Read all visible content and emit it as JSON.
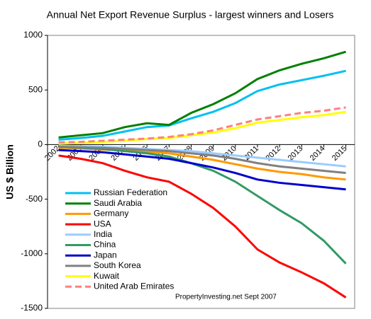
{
  "chart_data": {
    "type": "line",
    "title": "Annual Net Export Revenue Surplus -  largest winners and Losers",
    "y_label": "US $ Billion",
    "annotation": "PropertyInvesting.net     Sept 2007",
    "x": [
      2002,
      2003,
      2004,
      2005,
      2006,
      2007,
      2008,
      2009,
      2010,
      2011,
      2012,
      2013,
      2014,
      2015
    ],
    "xlim": [
      2001.5,
      2015.4
    ],
    "xticks": [
      2002,
      2003,
      2004,
      2005,
      2006,
      2007,
      2008,
      2009,
      2010,
      2011,
      2012,
      2013,
      2014,
      2015
    ],
    "ylim": [
      -1500,
      1000
    ],
    "yticks": [
      -1500,
      -1000,
      -500,
      0,
      500,
      1000
    ],
    "series": [
      {
        "name": "Russian Federation",
        "color": "#00c0f0",
        "values": [
          45,
          60,
          80,
          120,
          160,
          175,
          240,
          300,
          380,
          490,
          550,
          590,
          630,
          675
        ]
      },
      {
        "name": "Saudi Arabia",
        "color": "#008000",
        "values": [
          65,
          85,
          105,
          160,
          195,
          180,
          290,
          370,
          470,
          600,
          680,
          740,
          790,
          850
        ]
      },
      {
        "name": "Germany",
        "color": "#ff9900",
        "values": [
          -30,
          -35,
          -45,
          -55,
          -65,
          -80,
          -110,
          -140,
          -180,
          -220,
          -250,
          -270,
          -300,
          -320
        ]
      },
      {
        "name": "USA",
        "color": "#ff0000",
        "values": [
          -100,
          -130,
          -170,
          -240,
          -300,
          -340,
          -450,
          -580,
          -750,
          -960,
          -1080,
          -1170,
          -1270,
          -1400
        ]
      },
      {
        "name": "India",
        "color": "#99ccff",
        "values": [
          -10,
          -15,
          -20,
          -30,
          -40,
          -50,
          -60,
          -80,
          -100,
          -120,
          -140,
          -160,
          -180,
          -200
        ]
      },
      {
        "name": "China",
        "color": "#339966",
        "values": [
          -20,
          -30,
          -40,
          -60,
          -80,
          -110,
          -170,
          -240,
          -340,
          -470,
          -600,
          -720,
          -880,
          -1090
        ]
      },
      {
        "name": "Japan",
        "color": "#0000cc",
        "values": [
          -50,
          -60,
          -70,
          -90,
          -110,
          -130,
          -170,
          -210,
          -260,
          -320,
          -350,
          -370,
          -390,
          -410
        ]
      },
      {
        "name": "South Korea",
        "color": "#808080",
        "values": [
          -20,
          -25,
          -30,
          -40,
          -50,
          -60,
          -80,
          -100,
          -130,
          -170,
          -200,
          -220,
          -240,
          -260
        ]
      },
      {
        "name": "Kuwait",
        "color": "#ffff00",
        "values": [
          10,
          15,
          25,
          35,
          50,
          60,
          85,
          110,
          150,
          200,
          225,
          250,
          270,
          300
        ]
      },
      {
        "name": "United Arab Emirates",
        "color": "#ff8080",
        "dashed": true,
        "values": [
          20,
          25,
          35,
          45,
          55,
          70,
          95,
          130,
          180,
          230,
          260,
          290,
          310,
          340
        ]
      }
    ]
  }
}
